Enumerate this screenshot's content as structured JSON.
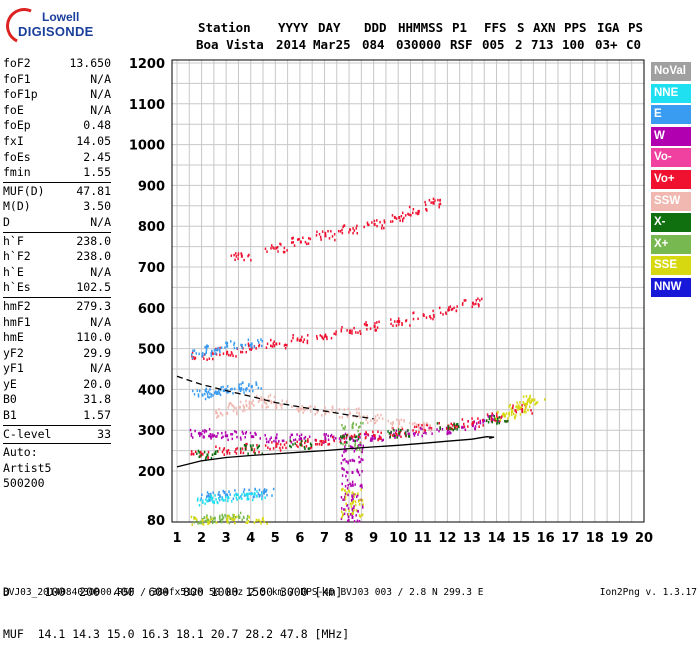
{
  "logo": {
    "line1": "Lowell",
    "line2": "DIGISONDE"
  },
  "header": {
    "labels": [
      "Station",
      "YYYY",
      "DAY",
      "DDD",
      "HHMMSS",
      "P1",
      "FFS",
      "S",
      "AXN",
      "PPS",
      "IGA",
      "PS"
    ],
    "values": [
      "Boa Vista",
      "2014",
      "Mar25",
      "084",
      "030000",
      "RSF",
      "005",
      "2",
      "713",
      "100",
      "03+",
      "C0"
    ]
  },
  "params": {
    "group1": [
      [
        "foF2",
        "13.650"
      ],
      [
        "foF1",
        "N/A"
      ],
      [
        "foF1p",
        "N/A"
      ],
      [
        "foE",
        "N/A"
      ],
      [
        "foEp",
        "0.48"
      ],
      [
        "fxI",
        "14.05"
      ],
      [
        "foEs",
        "2.45"
      ],
      [
        "fmin",
        "1.55"
      ]
    ],
    "group2": [
      [
        "MUF(D)",
        "47.81"
      ],
      [
        "M(D)",
        "3.50"
      ],
      [
        "D",
        "N/A"
      ]
    ],
    "group3": [
      [
        "h`F",
        "238.0"
      ],
      [
        "h`F2",
        "238.0"
      ],
      [
        "h`E",
        "N/A"
      ],
      [
        "h`Es",
        "102.5"
      ]
    ],
    "group4": [
      [
        "hmF2",
        "279.3"
      ],
      [
        "hmF1",
        "N/A"
      ],
      [
        "hmE",
        "110.0"
      ],
      [
        "yF2",
        "29.9"
      ],
      [
        "yF1",
        "N/A"
      ],
      [
        "yE",
        "20.0"
      ],
      [
        "B0",
        "31.8"
      ],
      [
        "B1",
        "1.57"
      ]
    ],
    "group5": [
      [
        "C-level",
        "33"
      ]
    ],
    "auto": [
      "Auto:",
      "Artist5",
      "500200"
    ]
  },
  "legend": [
    {
      "label": "NoVal",
      "color": "#a0a0a0"
    },
    {
      "label": "NNE",
      "color": "#1ee0f0"
    },
    {
      "label": "E",
      "color": "#3a9cf0"
    },
    {
      "label": "W",
      "color": "#b000b0"
    },
    {
      "label": "Vo-",
      "color": "#f040a0"
    },
    {
      "label": "Vo+",
      "color": "#f01030"
    },
    {
      "label": "SSW",
      "color": "#f0b8b0"
    },
    {
      "label": "X-",
      "color": "#107010"
    },
    {
      "label": "X+",
      "color": "#78b850"
    },
    {
      "label": "SSE",
      "color": "#d8d810"
    },
    {
      "label": "NNW",
      "color": "#1818d8"
    }
  ],
  "footer": {
    "line1": "D     100  200  400  600  800 1000 1500 3000 [km]",
    "line2": "MUF  14.1 14.3 15.0 16.3 18.1 20.7 28.2 47.8 [MHz]",
    "file_info": "BVJ03_2014084030000.RSF / 384fx512h 50 kHz 2.5 km / DPS-4D BVJ03 003 / 2.8 N 299.3 E",
    "version": "Ion2Png v. 1.3.17"
  },
  "chart_data": {
    "type": "scatter",
    "title": "",
    "xlabel": "",
    "ylabel": "",
    "xlim": [
      1,
      20
    ],
    "ylim": [
      80,
      1200
    ],
    "xticks": [
      1,
      2,
      3,
      4,
      5,
      6,
      7,
      8,
      9,
      10,
      11,
      12,
      13,
      14,
      15,
      16,
      17,
      18,
      19,
      20
    ],
    "yticks": [
      80,
      200,
      300,
      400,
      500,
      600,
      700,
      800,
      900,
      1000,
      1100,
      1200
    ],
    "grid": true,
    "series": [
      {
        "color": "#b000b0",
        "points": [
          [
            1.9,
            295
          ],
          [
            2.4,
            292
          ],
          [
            3,
            290
          ],
          [
            4,
            288
          ],
          [
            5,
            285
          ],
          [
            6,
            283
          ],
          [
            7,
            282
          ],
          [
            8,
            285
          ],
          [
            9,
            288
          ],
          [
            10,
            292
          ],
          [
            11,
            298
          ],
          [
            12,
            305
          ],
          [
            13,
            315
          ],
          [
            13.8,
            330
          ]
        ]
      },
      {
        "color": "#f01030",
        "points": [
          [
            2,
            245
          ],
          [
            3,
            252
          ],
          [
            4,
            258
          ],
          [
            5,
            264
          ],
          [
            6,
            270
          ],
          [
            7,
            276
          ],
          [
            8,
            283
          ],
          [
            9,
            290
          ],
          [
            10,
            298
          ],
          [
            11,
            306
          ],
          [
            12,
            314
          ],
          [
            13,
            322
          ],
          [
            14,
            333
          ],
          [
            15,
            355
          ]
        ]
      },
      {
        "color": "#107010",
        "points": [
          [
            2.2,
            243
          ],
          [
            4,
            256
          ],
          [
            6,
            268
          ],
          [
            8,
            282
          ],
          [
            10,
            296
          ],
          [
            12,
            312
          ],
          [
            14,
            330
          ]
        ]
      },
      {
        "color": "#d8d810",
        "points": [
          [
            14.3,
            338
          ],
          [
            14.6,
            350
          ],
          [
            14.9,
            358
          ],
          [
            15.2,
            368
          ],
          [
            15.5,
            378
          ]
        ]
      },
      {
        "color": "#f01030",
        "points": [
          [
            2,
            485
          ],
          [
            3,
            495
          ],
          [
            4,
            505
          ],
          [
            5,
            515
          ],
          [
            6,
            525
          ],
          [
            7,
            535
          ],
          [
            8,
            547
          ],
          [
            9,
            558
          ],
          [
            10,
            570
          ],
          [
            11,
            585
          ],
          [
            12,
            598
          ],
          [
            13,
            615
          ]
        ]
      },
      {
        "color": "#f01030",
        "points": [
          [
            3.6,
            730
          ],
          [
            5,
            750
          ],
          [
            6,
            765
          ],
          [
            7,
            780
          ],
          [
            8,
            795
          ],
          [
            9,
            808
          ],
          [
            10,
            825
          ],
          [
            10.8,
            840
          ],
          [
            11.4,
            860
          ]
        ]
      },
      {
        "color": "#f0b8b0",
        "points": [
          [
            3,
            345
          ],
          [
            3.5,
            360
          ],
          [
            4,
            370
          ],
          [
            4.5,
            380
          ],
          [
            5,
            365
          ],
          [
            6,
            355
          ],
          [
            7,
            350
          ],
          [
            8,
            345
          ],
          [
            9,
            330
          ],
          [
            10,
            320
          ],
          [
            11,
            310
          ]
        ]
      },
      {
        "color": "#3a9cf0",
        "points": [
          [
            2,
            390
          ],
          [
            2.5,
            395
          ],
          [
            3,
            400
          ],
          [
            3.5,
            405
          ],
          [
            4,
            410
          ],
          [
            2.3,
            140
          ],
          [
            3,
            145
          ],
          [
            4,
            148
          ],
          [
            4.5,
            150
          ],
          [
            2,
            490
          ],
          [
            2.5,
            500
          ],
          [
            3,
            510
          ],
          [
            4,
            515
          ]
        ]
      },
      {
        "color": "#1ee0f0",
        "points": [
          [
            2.2,
            130
          ],
          [
            2.8,
            135
          ],
          [
            3.5,
            138
          ],
          [
            4.2,
            142
          ]
        ]
      },
      {
        "color": "#78b850",
        "points": [
          [
            2,
            85
          ],
          [
            2.5,
            88
          ],
          [
            3,
            85
          ],
          [
            3.5,
            90
          ],
          [
            8.1,
            260
          ],
          [
            8.1,
            310
          ]
        ]
      },
      {
        "color": "#b000b0",
        "points": [
          [
            8.1,
            90
          ],
          [
            8.1,
            110
          ],
          [
            8.1,
            140
          ],
          [
            8.1,
            170
          ],
          [
            8.1,
            200
          ],
          [
            8.1,
            230
          ],
          [
            8.1,
            260
          ]
        ]
      },
      {
        "color": "#d8d810",
        "points": [
          [
            8.1,
            100
          ],
          [
            8.1,
            125
          ],
          [
            8.1,
            150
          ],
          [
            2,
            82
          ],
          [
            3,
            84
          ],
          [
            4.2,
            83
          ]
        ]
      }
    ],
    "curves": [
      {
        "style": "solid",
        "points": [
          [
            1,
            210
          ],
          [
            2,
            225
          ],
          [
            3,
            233
          ],
          [
            4,
            238
          ],
          [
            5,
            242
          ],
          [
            6,
            246
          ],
          [
            7,
            250
          ],
          [
            8,
            255
          ],
          [
            9,
            259
          ],
          [
            10,
            263
          ],
          [
            11,
            268
          ],
          [
            12,
            273
          ],
          [
            13,
            278
          ],
          [
            13.6,
            284
          ],
          [
            13.9,
            283
          ],
          [
            13.7,
            280
          ]
        ]
      },
      {
        "style": "dashed",
        "points": [
          [
            1,
            432
          ],
          [
            2,
            412
          ],
          [
            3,
            397
          ],
          [
            4,
            383
          ],
          [
            5,
            368
          ],
          [
            6,
            357
          ],
          [
            7,
            347
          ],
          [
            8,
            337
          ],
          [
            9,
            328
          ]
        ]
      }
    ]
  }
}
